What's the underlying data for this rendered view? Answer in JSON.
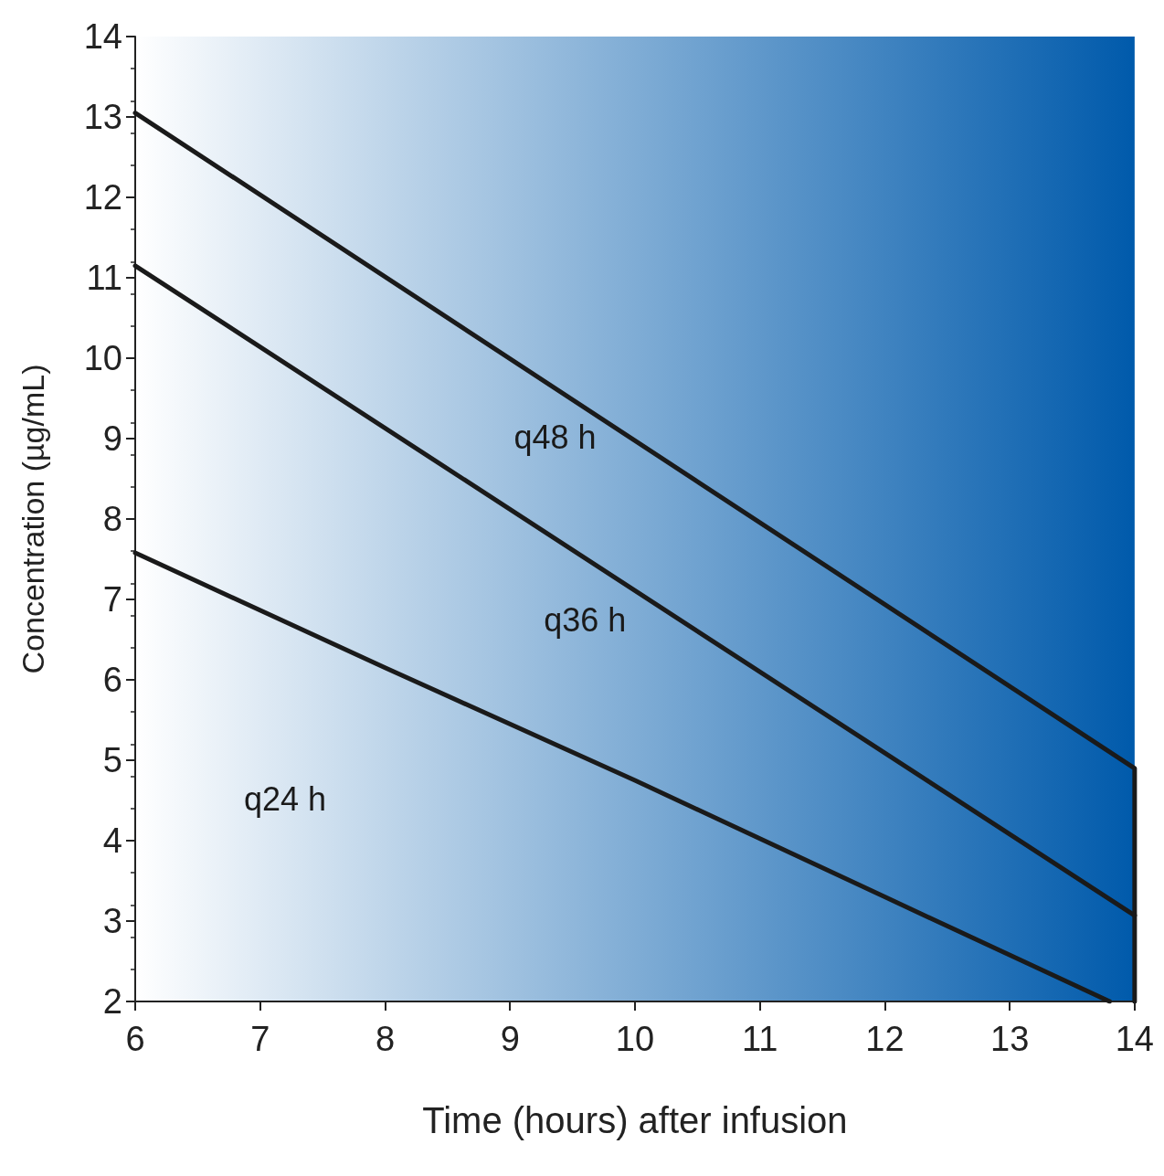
{
  "chart_data": {
    "type": "line",
    "xlabel": "Time (hours) after infusion",
    "ylabel": "Concentration (µg/mL)",
    "xlim": [
      6,
      14
    ],
    "xticks": [
      6,
      7,
      8,
      9,
      10,
      11,
      12,
      13,
      14
    ],
    "ylim": [
      2,
      14
    ],
    "yticks": [
      2,
      3,
      4,
      5,
      6,
      7,
      8,
      9,
      10,
      11,
      12,
      13,
      14
    ],
    "grid": false,
    "marker": "none",
    "line_style": "solid",
    "series": [
      {
        "color": "#1a1a1a",
        "x": [
          6,
          14,
          14
        ],
        "values": [
          13.05,
          4.9,
          2
        ]
      },
      {
        "color": "#1a1a1a",
        "x": [
          6,
          14
        ],
        "values": [
          11.15,
          3.07
        ]
      },
      {
        "color": "#1a1a1a",
        "x": [
          6,
          8,
          10,
          12,
          13.8
        ],
        "values": [
          7.58,
          6.15,
          4.75,
          3.3,
          2
        ]
      }
    ],
    "annotations": [
      "q48 h",
      "q36 h",
      "q24 h"
    ]
  }
}
